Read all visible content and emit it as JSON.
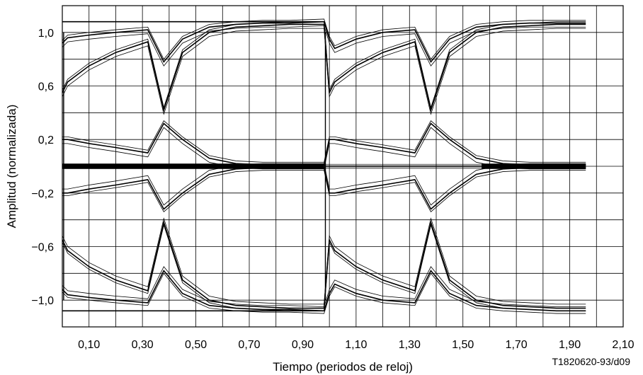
{
  "chart_data": {
    "type": "line",
    "title": "",
    "xlabel": "Tiempo (periodos de reloj)",
    "ylabel": "Amplitud (normalizada)",
    "xlim": [
      0,
      2.1
    ],
    "ylim": [
      -1.2,
      1.2
    ],
    "x_ticks": [
      "0,10",
      "0,30",
      "0,50",
      "0,70",
      "0,90",
      "1,10",
      "1,30",
      "1,50",
      "1,70",
      "1,90",
      "2,10"
    ],
    "x_tick_values": [
      0.1,
      0.3,
      0.5,
      0.7,
      0.9,
      1.1,
      1.3,
      1.5,
      1.7,
      1.9,
      2.1
    ],
    "y_ticks": [
      "1,0",
      "0,6",
      "0,2",
      "−0,2",
      "−0,6",
      "−1,0"
    ],
    "y_tick_values": [
      1.0,
      0.6,
      0.2,
      -0.2,
      -0.6,
      -1.0
    ],
    "grid": true,
    "legend": "none",
    "reference": "T1820620-93/d09",
    "series": [
      {
        "x": [
          0,
          0.02,
          0.1,
          0.2,
          0.32,
          0.38,
          0.45,
          0.55,
          0.65,
          0.75,
          0.85,
          0.98,
          1.0,
          1.02,
          1.1,
          1.2,
          1.32,
          1.38,
          1.45,
          1.55,
          1.65,
          1.75,
          1.85,
          1.96
        ],
        "y": [
          0.92,
          0.96,
          0.98,
          1.0,
          1.02,
          0.78,
          0.95,
          1.04,
          1.06,
          1.07,
          1.07,
          1.08,
          0.95,
          0.88,
          0.95,
          1.0,
          1.02,
          0.78,
          0.95,
          1.04,
          1.06,
          1.07,
          1.07,
          1.07
        ]
      },
      {
        "x": [
          0,
          0.02,
          0.1,
          0.2,
          0.32,
          0.38,
          0.45,
          0.55,
          0.65,
          0.75,
          0.85,
          0.98,
          1.0,
          1.02,
          1.1,
          1.2,
          1.32,
          1.38,
          1.45,
          1.55,
          1.65,
          1.75,
          1.85,
          1.96
        ],
        "y": [
          0.55,
          0.63,
          0.75,
          0.85,
          0.93,
          0.42,
          0.85,
          1.0,
          1.04,
          1.05,
          1.06,
          1.06,
          0.55,
          0.63,
          0.75,
          0.85,
          0.93,
          0.42,
          0.85,
          1.0,
          1.04,
          1.05,
          1.06,
          1.06
        ]
      },
      {
        "x": [
          0,
          0.02,
          0.1,
          0.2,
          0.32,
          0.38,
          0.45,
          0.55,
          0.65,
          0.75,
          0.85,
          0.98,
          1.0,
          1.02,
          1.1,
          1.2,
          1.32,
          1.38,
          1.45,
          1.55,
          1.65,
          1.75,
          1.85,
          1.96
        ],
        "y": [
          0.2,
          0.2,
          0.17,
          0.14,
          0.1,
          0.32,
          0.2,
          0.06,
          0.02,
          0.01,
          0.01,
          0.01,
          0.2,
          0.2,
          0.17,
          0.14,
          0.1,
          0.32,
          0.2,
          0.06,
          0.02,
          0.01,
          0.01,
          0.01
        ]
      },
      {
        "x": [
          0,
          0.02,
          0.1,
          0.2,
          0.32,
          0.38,
          0.45,
          0.55,
          0.65,
          0.75,
          0.85,
          0.98,
          1.0,
          1.02,
          1.1,
          1.2,
          1.32,
          1.38,
          1.45,
          1.55,
          1.65,
          1.75,
          1.85,
          1.96
        ],
        "y": [
          -0.2,
          -0.2,
          -0.17,
          -0.14,
          -0.1,
          -0.32,
          -0.2,
          -0.06,
          -0.02,
          -0.01,
          -0.01,
          -0.01,
          -0.2,
          -0.2,
          -0.17,
          -0.14,
          -0.1,
          -0.32,
          -0.2,
          -0.06,
          -0.02,
          -0.01,
          -0.01,
          -0.01
        ]
      },
      {
        "x": [
          0,
          0.02,
          0.1,
          0.2,
          0.32,
          0.38,
          0.45,
          0.55,
          0.65,
          0.75,
          0.85,
          0.98,
          1.0,
          1.02,
          1.1,
          1.2,
          1.32,
          1.38,
          1.45,
          1.55,
          1.65,
          1.75,
          1.85,
          1.96
        ],
        "y": [
          -0.55,
          -0.63,
          -0.75,
          -0.85,
          -0.93,
          -0.42,
          -0.85,
          -1.0,
          -1.04,
          -1.05,
          -1.06,
          -1.06,
          -0.55,
          -0.63,
          -0.75,
          -0.85,
          -0.93,
          -0.42,
          -0.85,
          -1.0,
          -1.04,
          -1.05,
          -1.06,
          -1.06
        ]
      },
      {
        "x": [
          0,
          0.02,
          0.1,
          0.2,
          0.32,
          0.38,
          0.45,
          0.55,
          0.65,
          0.75,
          0.85,
          0.98,
          1.0,
          1.02,
          1.1,
          1.2,
          1.32,
          1.38,
          1.45,
          1.55,
          1.65,
          1.75,
          1.85,
          1.96
        ],
        "y": [
          -0.92,
          -0.96,
          -0.98,
          -1.0,
          -1.02,
          -0.78,
          -0.95,
          -1.04,
          -1.06,
          -1.07,
          -1.07,
          -1.08,
          -0.95,
          -0.88,
          -0.95,
          -1.0,
          -1.02,
          -0.78,
          -0.95,
          -1.04,
          -1.06,
          -1.07,
          -1.08,
          -1.08
        ]
      },
      {
        "x": [
          0,
          0.98
        ],
        "y": [
          1.08,
          1.08
        ]
      },
      {
        "x": [
          0,
          0.98
        ],
        "y": [
          -1.08,
          -1.08
        ]
      }
    ],
    "centre_band": [
      {
        "x_start": 0,
        "x_end": 0.98,
        "y_min": -0.02,
        "y_max": 0.02
      },
      {
        "x_start": 1.57,
        "x_end": 1.96,
        "y_min": -0.02,
        "y_max": 0.02
      }
    ]
  }
}
